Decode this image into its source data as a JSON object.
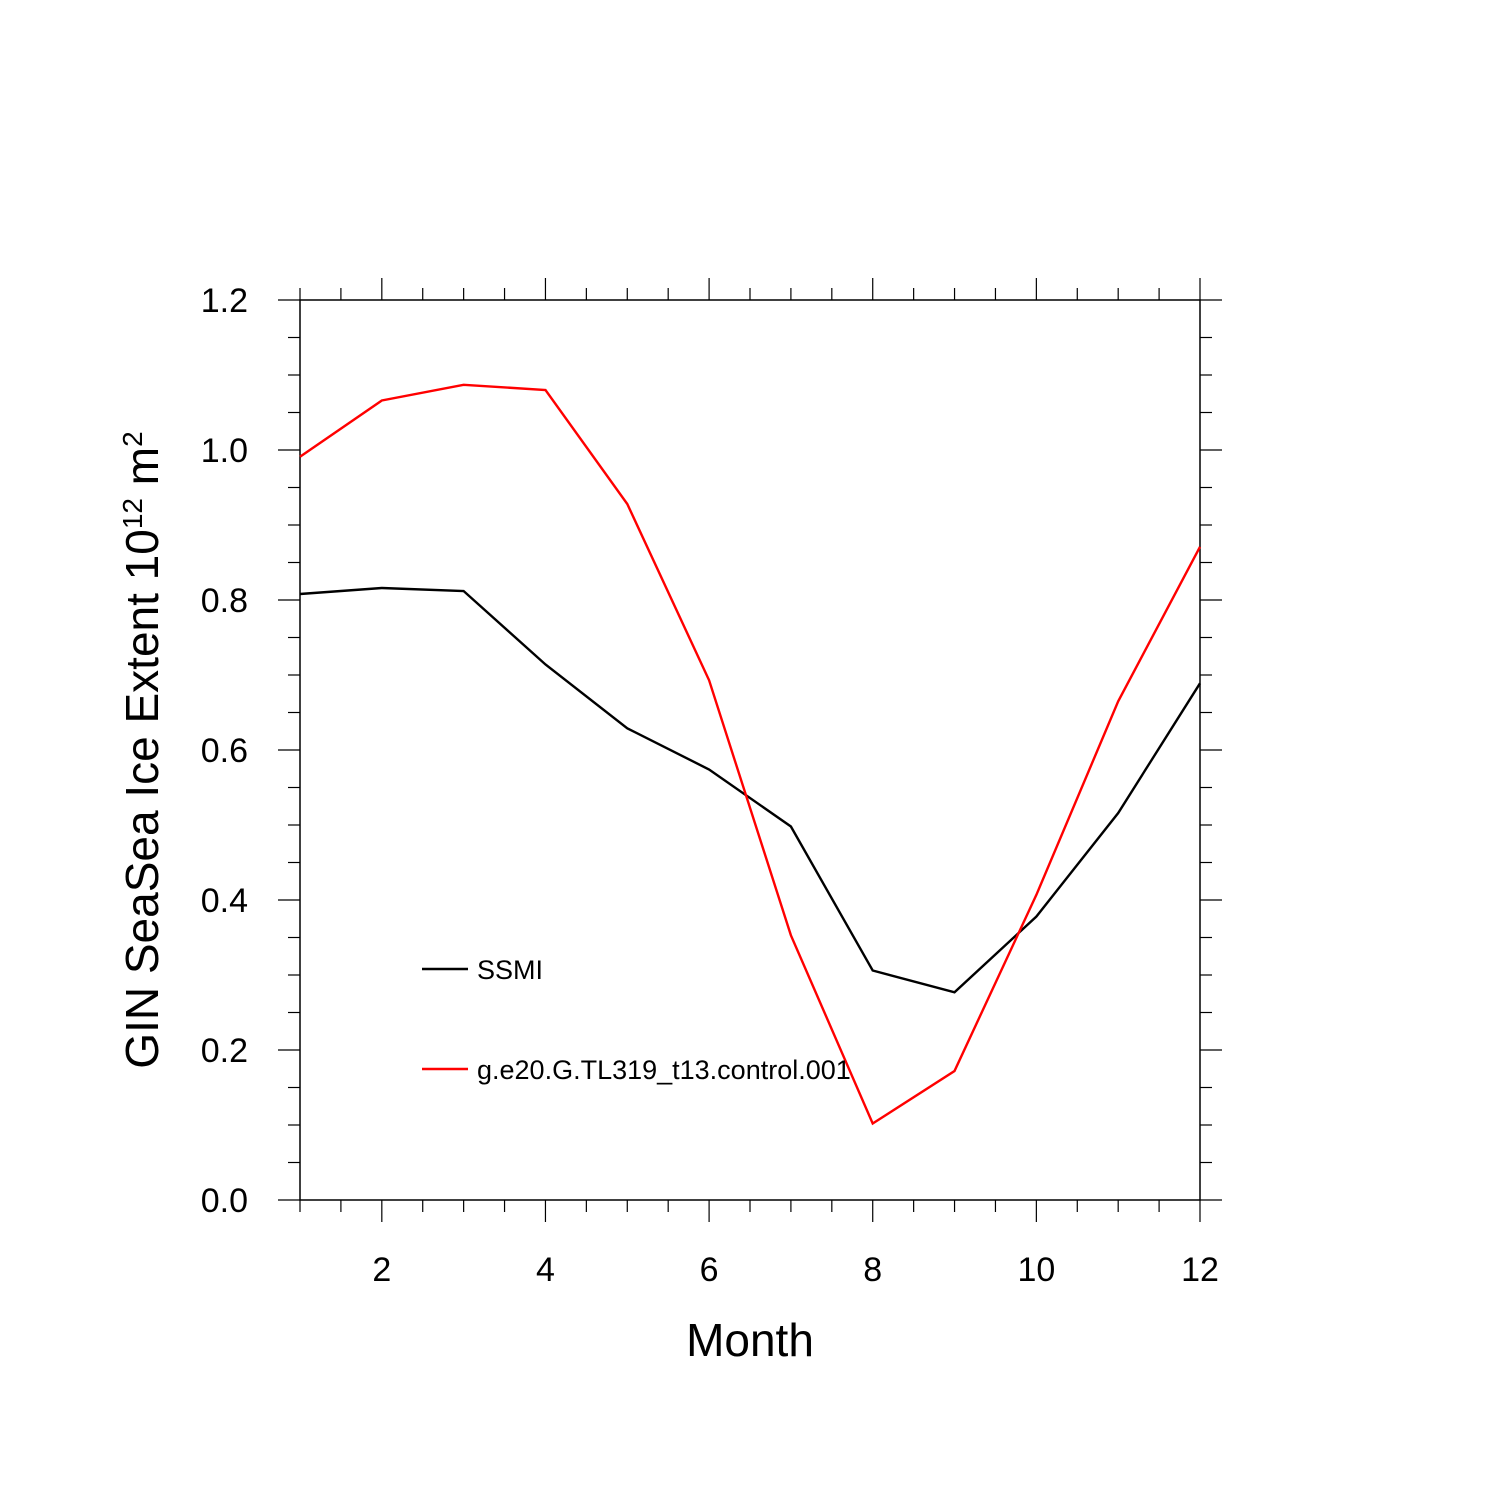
{
  "chart_data": {
    "type": "line",
    "title": "",
    "xlabel": "Month",
    "ylabel": {
      "prefix": "GIN SeaSea Ice Extent 10",
      "sup1": "12",
      "middle": " m",
      "sup2": "2"
    },
    "xlim": [
      1,
      12
    ],
    "ylim": [
      0.0,
      1.2
    ],
    "x_ticks": [
      2,
      4,
      6,
      8,
      10,
      12
    ],
    "x_tick_labels": [
      "2",
      "4",
      "6",
      "8",
      "10",
      "12"
    ],
    "y_ticks": [
      0.0,
      0.2,
      0.4,
      0.6,
      0.8,
      1.0,
      1.2
    ],
    "y_tick_labels": [
      "0.0",
      "0.2",
      "0.4",
      "0.6",
      "0.8",
      "1.0",
      "1.2"
    ],
    "grid": false,
    "legend_position": "lower-left",
    "x": [
      1,
      2,
      3,
      4,
      5,
      6,
      7,
      8,
      9,
      10,
      11,
      12
    ],
    "series": [
      {
        "name": "SSMI",
        "color": "#000000",
        "values": [
          0.808,
          0.816,
          0.812,
          0.714,
          0.629,
          0.574,
          0.498,
          0.306,
          0.277,
          0.378,
          0.516,
          0.689
        ]
      },
      {
        "name": "g.e20.G.TL319_t13.control.001",
        "color": "#ff0000",
        "values": [
          0.991,
          1.066,
          1.087,
          1.08,
          0.928,
          0.693,
          0.353,
          0.102,
          0.172,
          0.407,
          0.665,
          0.871
        ]
      }
    ]
  }
}
